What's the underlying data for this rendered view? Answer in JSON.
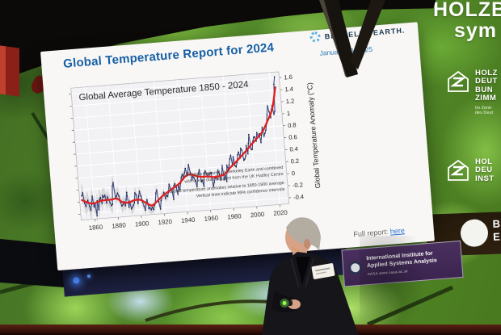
{
  "stage": {
    "screen_banner": {
      "line1": "HOLZB",
      "line2": "sym"
    },
    "right_logos": {
      "logo1": {
        "lines": [
          "HOLZ",
          "DEUT",
          "BUN",
          "ZIMM"
        ],
        "sub": [
          "Im Zentr",
          "des Deut"
        ]
      },
      "logo2": {
        "lines": [
          "HOL",
          "DEU",
          "INST"
        ]
      },
      "logo3": {
        "lines": [
          "BA",
          "EA"
        ]
      }
    }
  },
  "slide": {
    "title": "Global Temperature Report for 2024",
    "brand": "BERKELEY EARTH.",
    "date": "January 10, 2025",
    "full_report_label": "Full report:",
    "full_report_link": "here"
  },
  "iiasa": {
    "line1": "International Institute for",
    "line2": "Applied Systems Analysis",
    "line3": "IIASA   www.iiasa.ac.at"
  },
  "chart_data": {
    "type": "line",
    "title": "Global Average Temperature 1850 - 2024",
    "ylabel": "Global Temperature Anomaly (°C)",
    "y_axis_side": "right",
    "grid": true,
    "xlim": [
      1848,
      2028
    ],
    "ylim": [
      -0.5,
      1.7
    ],
    "x_ticks": [
      1860,
      1880,
      1900,
      1920,
      1940,
      1960,
      1980,
      2000,
      2020
    ],
    "y_ticks": [
      1.6,
      1.4,
      1.2,
      1,
      0.8,
      0.6,
      0.4,
      0.2,
      0,
      -0.2,
      -0.4
    ],
    "annotations": [
      "Land data prepared by Berkeley Earth and combined",
      "with ocean data adapted from the UK Hadley Centre",
      "Global temperature anomalies relative to 1850-1900 average",
      "Vertical lines indicate 95% confidence intervals"
    ],
    "annual_color": "#35427f",
    "marker_color": "#15172b",
    "ci_color": "#c7c7cd",
    "smooth_color": "#dd1f1f",
    "series": [
      {
        "name": "annual anomaly",
        "x_start": 1850,
        "values": [
          -0.1,
          -0.05,
          -0.22,
          -0.28,
          -0.22,
          -0.18,
          -0.28,
          -0.35,
          -0.25,
          -0.12,
          -0.3,
          -0.25,
          -0.45,
          -0.2,
          -0.35,
          -0.18,
          -0.15,
          -0.25,
          -0.12,
          -0.15,
          -0.12,
          -0.25,
          -0.15,
          -0.2,
          -0.25,
          -0.3,
          -0.28,
          0.02,
          0.08,
          -0.18,
          -0.15,
          -0.1,
          -0.15,
          -0.25,
          -0.32,
          -0.3,
          -0.25,
          -0.32,
          -0.22,
          -0.1,
          -0.35,
          -0.25,
          -0.38,
          -0.35,
          -0.32,
          -0.28,
          -0.12,
          -0.15,
          -0.3,
          -0.18,
          -0.1,
          -0.18,
          -0.28,
          -0.35,
          -0.42,
          -0.3,
          -0.25,
          -0.4,
          -0.38,
          -0.42,
          -0.38,
          -0.42,
          -0.35,
          -0.32,
          -0.15,
          -0.1,
          -0.3,
          -0.42,
          -0.28,
          -0.22,
          -0.2,
          -0.15,
          -0.25,
          -0.2,
          -0.22,
          -0.15,
          -0.02,
          -0.12,
          -0.1,
          -0.28,
          -0.05,
          -0.02,
          -0.08,
          -0.2,
          -0.05,
          -0.12,
          -0.02,
          0.08,
          0.12,
          0.05,
          0.15,
          0.22,
          0.12,
          0.15,
          0.28,
          0.15,
          0.02,
          0.08,
          0.05,
          0.0,
          -0.1,
          0.05,
          0.12,
          0.18,
          -0.02,
          0.0,
          -0.1,
          0.12,
          0.15,
          0.1,
          0.05,
          0.1,
          0.1,
          0.12,
          -0.12,
          -0.05,
          0.02,
          0.05,
          0.0,
          0.15,
          0.08,
          -0.02,
          0.08,
          0.22,
          -0.02,
          0.05,
          -0.05,
          0.22,
          0.15,
          0.22,
          0.32,
          0.38,
          0.2,
          0.35,
          0.2,
          0.18,
          0.25,
          0.38,
          0.42,
          0.32,
          0.48,
          0.45,
          0.28,
          0.3,
          0.35,
          0.52,
          0.38,
          0.55,
          0.7,
          0.45,
          0.45,
          0.58,
          0.65,
          0.65,
          0.58,
          0.72,
          0.65,
          0.7,
          0.55,
          0.68,
          0.8,
          0.65,
          0.7,
          0.75,
          0.85,
          1.0,
          1.15,
          1.05,
          0.95,
          1.08,
          1.15,
          1.0,
          1.05,
          1.5,
          1.62
        ]
      },
      {
        "name": "smoothed trend",
        "x": [
          1850,
          1855,
          1860,
          1865,
          1870,
          1875,
          1880,
          1885,
          1890,
          1895,
          1900,
          1905,
          1910,
          1915,
          1920,
          1925,
          1930,
          1935,
          1940,
          1945,
          1950,
          1955,
          1960,
          1965,
          1970,
          1975,
          1980,
          1985,
          1990,
          1995,
          2000,
          2005,
          2010,
          2015,
          2020,
          2024
        ],
        "values": [
          -0.17,
          -0.22,
          -0.24,
          -0.21,
          -0.2,
          -0.2,
          -0.19,
          -0.26,
          -0.27,
          -0.24,
          -0.24,
          -0.3,
          -0.35,
          -0.28,
          -0.2,
          -0.14,
          -0.08,
          -0.02,
          0.08,
          0.12,
          0.08,
          0.06,
          0.06,
          0.04,
          0.05,
          0.08,
          0.18,
          0.26,
          0.35,
          0.44,
          0.54,
          0.63,
          0.73,
          0.9,
          1.1,
          1.45
        ]
      }
    ],
    "ci_points": [
      [
        1850,
        0.16
      ],
      [
        1880,
        0.12
      ],
      [
        1900,
        0.09
      ],
      [
        1940,
        0.06
      ],
      [
        1970,
        0.045
      ],
      [
        2000,
        0.03
      ],
      [
        2024,
        0.025
      ]
    ]
  }
}
